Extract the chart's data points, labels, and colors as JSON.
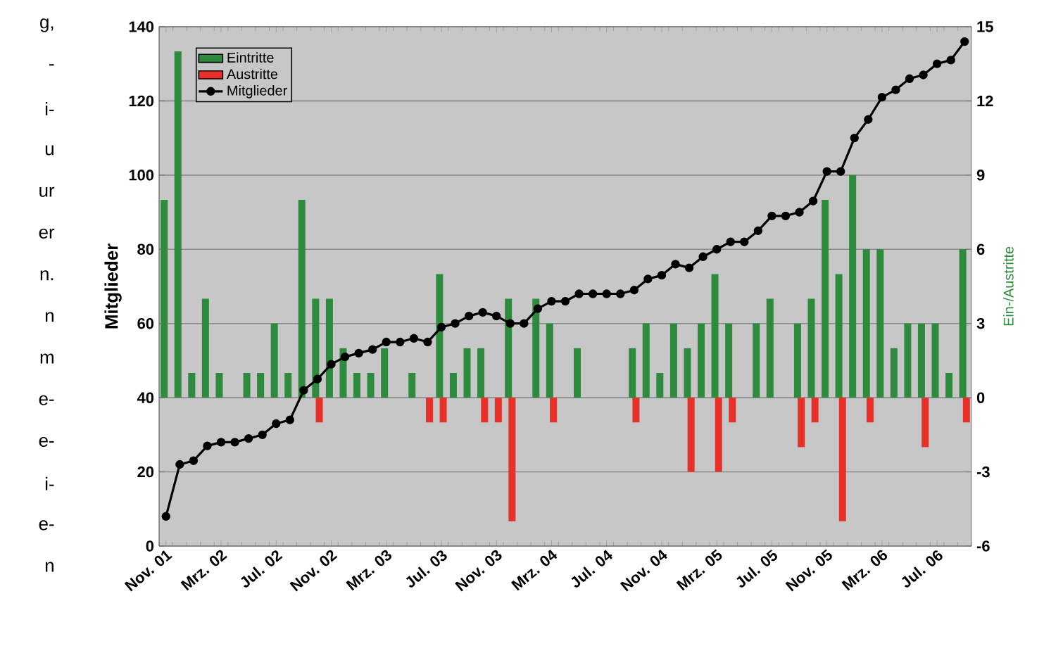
{
  "chart_data": {
    "type": "bar",
    "ylabel": "Mitglieder",
    "y2label": "Ein-/Austritte",
    "categories": [
      "Nov. 01",
      null,
      null,
      null,
      "Mrz. 02",
      null,
      null,
      null,
      "Jul. 02",
      null,
      null,
      null,
      "Nov. 02",
      null,
      null,
      null,
      "Mrz. 03",
      null,
      null,
      null,
      "Jul. 03",
      null,
      null,
      null,
      "Nov. 03",
      null,
      null,
      null,
      "Mrz. 04",
      null,
      null,
      null,
      "Jul. 04",
      null,
      null,
      null,
      "Nov. 04",
      null,
      null,
      null,
      "Mrz. 05",
      null,
      null,
      null,
      "Jul. 05",
      null,
      null,
      null,
      "Nov. 05",
      null,
      null,
      null,
      "Mrz. 06",
      null,
      null,
      null,
      "Jul. 06",
      null,
      null
    ],
    "series": [
      {
        "name": "Eintritte",
        "axis": "y2",
        "color": "#2e8b3e",
        "values": [
          8,
          14,
          1,
          4,
          1,
          0,
          1,
          1,
          3,
          1,
          8,
          4,
          4,
          2,
          1,
          1,
          2,
          0,
          1,
          0,
          5,
          1,
          2,
          2,
          0,
          4,
          0,
          4,
          3,
          0,
          2,
          0,
          0,
          0,
          2,
          3,
          1,
          3,
          2,
          3,
          5,
          3,
          0,
          3,
          4,
          0,
          3,
          4,
          8,
          5,
          9,
          6,
          6,
          2,
          3,
          3,
          3,
          1,
          6
        ]
      },
      {
        "name": "Austritte",
        "axis": "y2",
        "color": "#e8302a",
        "values": [
          0,
          0,
          0,
          0,
          0,
          0,
          0,
          0,
          0,
          0,
          0,
          -1,
          0,
          0,
          0,
          0,
          0,
          0,
          0,
          -1,
          -1,
          0,
          0,
          -1,
          -1,
          -5,
          0,
          0,
          -1,
          0,
          0,
          0,
          0,
          0,
          -1,
          0,
          0,
          0,
          -3,
          0,
          -3,
          -1,
          0,
          0,
          0,
          0,
          -2,
          -1,
          0,
          -5,
          0,
          -1,
          0,
          0,
          0,
          -2,
          0,
          0,
          -1
        ]
      },
      {
        "name": "Mitglieder",
        "type": "line",
        "axis": "y",
        "color": "#000000",
        "values": [
          8,
          22,
          23,
          27,
          28,
          28,
          29,
          30,
          33,
          34,
          42,
          45,
          49,
          51,
          52,
          53,
          55,
          55,
          56,
          55,
          59,
          60,
          62,
          63,
          62,
          60,
          60,
          64,
          66,
          66,
          68,
          68,
          68,
          68,
          69,
          72,
          73,
          76,
          75,
          78,
          80,
          82,
          82,
          85,
          89,
          89,
          90,
          93,
          101,
          101,
          110,
          115,
          121,
          123,
          126,
          127,
          130,
          131,
          136
        ]
      }
    ],
    "ylim": [
      0,
      140
    ],
    "yticks": [
      0,
      20,
      40,
      60,
      80,
      100,
      120,
      140
    ],
    "y2lim": [
      -6,
      15
    ],
    "y2ticks": [
      -6,
      -3,
      0,
      3,
      6,
      9,
      12,
      15
    ],
    "grid": "y",
    "legend": "top left",
    "marker": "circle",
    "annotations": [
      "g,",
      "-",
      "i-",
      "u",
      "ur",
      "er",
      "n.",
      "n",
      "m",
      "e-",
      "e-",
      "i-",
      "e-",
      "n"
    ]
  }
}
